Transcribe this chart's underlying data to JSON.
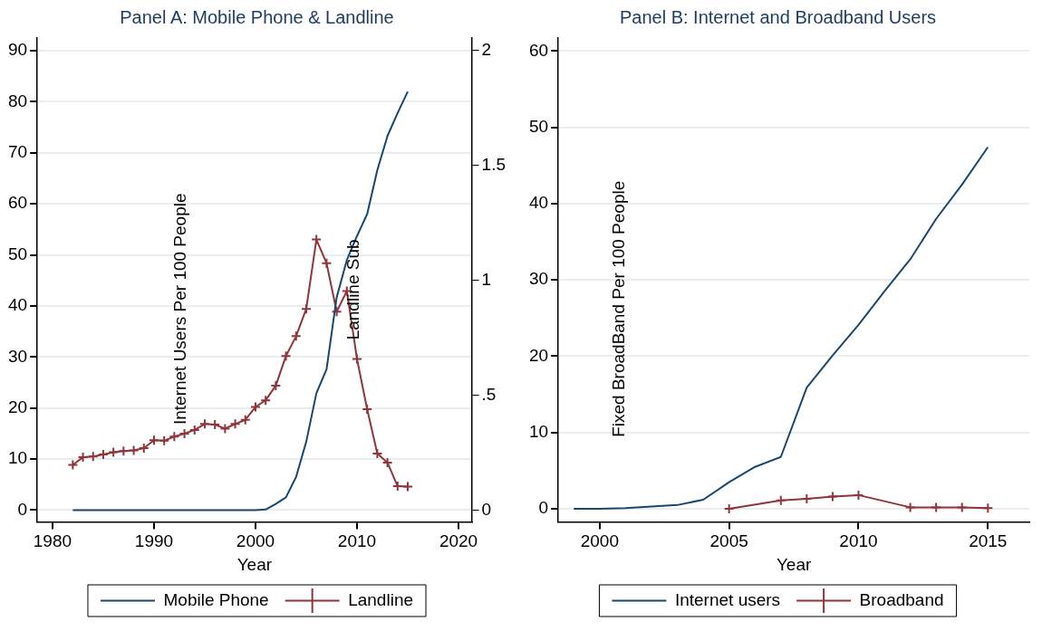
{
  "chart_data": [
    {
      "type": "line",
      "title": "Panel A: Mobile Phone & Landline",
      "xlabel": "Year",
      "ylabel": "Internet Users Per 100 People",
      "y2label": "Landline Sub",
      "xlim": [
        1978.5,
        2021.3
      ],
      "xticks": [
        1980,
        1990,
        2000,
        2010,
        2020
      ],
      "ylim": [
        -2.3,
        92.5
      ],
      "yticks": [
        0,
        10,
        20,
        30,
        40,
        50,
        60,
        70,
        80,
        90
      ],
      "y2lim": [
        -0.051,
        2.055
      ],
      "y2ticks": [
        0,
        {
          "value": 0.5,
          "label": ".5"
        },
        1,
        1.5,
        2
      ],
      "grid": "y",
      "legend": "bottom",
      "series": [
        {
          "name": "Mobile Phone",
          "color": "#1a476f",
          "marker": "none",
          "x": [
            1982,
            1983,
            1984,
            1985,
            1986,
            1987,
            1988,
            1989,
            1990,
            1991,
            1992,
            1993,
            1994,
            1995,
            1996,
            1997,
            1998,
            1999,
            2000,
            2001,
            2002,
            2003,
            2004,
            2005,
            2006,
            2007,
            2008,
            2009,
            2010,
            2011,
            2012,
            2013,
            2014,
            2015
          ],
          "values": [
            0,
            0,
            0,
            0,
            0,
            0,
            0,
            0,
            0,
            0,
            0,
            0,
            0,
            0,
            0,
            0,
            0,
            0,
            0,
            0.1,
            1.2,
            2.5,
            6.5,
            13.4,
            22.9,
            27.6,
            41.7,
            49,
            53.7,
            58,
            66.6,
            73.3,
            77.8,
            82
          ]
        },
        {
          "name": "Landline",
          "color": "#90353b",
          "marker": "cross",
          "axis": "y2",
          "x": [
            1982,
            1983,
            1984,
            1985,
            1986,
            1987,
            1988,
            1989,
            1990,
            1991,
            1992,
            1993,
            1994,
            1995,
            1996,
            1997,
            1998,
            1999,
            2000,
            2001,
            2002,
            2003,
            2004,
            2005,
            2006,
            2007,
            2008,
            2009,
            2010,
            2011,
            2012,
            2013,
            2014,
            2015
          ],
          "values": [
            0.197,
            0.23,
            0.233,
            0.242,
            0.252,
            0.257,
            0.26,
            0.27,
            0.304,
            0.302,
            0.32,
            0.333,
            0.349,
            0.375,
            0.372,
            0.355,
            0.375,
            0.393,
            0.449,
            0.478,
            0.542,
            0.671,
            0.757,
            0.876,
            1.178,
            1.075,
            0.864,
            0.954,
            0.658,
            0.439,
            0.246,
            0.207,
            0.104,
            0.102
          ]
        }
      ]
    },
    {
      "type": "line",
      "title": "Panel B: Internet and Broadband Users",
      "xlabel": "Year",
      "ylabel": "Fixed BroadBand Per 100 People",
      "xlim": [
        1998.4,
        2016.6
      ],
      "xticks": [
        2000,
        2005,
        2010,
        2015
      ],
      "ylim": [
        -1.7,
        61.7
      ],
      "yticks": [
        0,
        10,
        20,
        30,
        40,
        50,
        60
      ],
      "grid": "y",
      "legend": "bottom",
      "series": [
        {
          "name": "Internet users",
          "color": "#1a476f",
          "marker": "none",
          "x": [
            1999,
            2000,
            2001,
            2002,
            2003,
            2004,
            2005,
            2006,
            2007,
            2008,
            2009,
            2010,
            2011,
            2012,
            2013,
            2014,
            2015
          ],
          "values": [
            0,
            0,
            0.1,
            0.3,
            0.5,
            1.2,
            3.5,
            5.5,
            6.8,
            15.9,
            20.1,
            24.1,
            28.5,
            32.7,
            38,
            42.5,
            47.4
          ]
        },
        {
          "name": "Broadband",
          "color": "#90353b",
          "marker": "cross",
          "x": [
            2005,
            2007,
            2008,
            2009,
            2010,
            2012,
            2013,
            2014,
            2015
          ],
          "values": [
            0,
            1.1,
            1.3,
            1.6,
            1.8,
            0.2,
            0.2,
            0.2,
            0.1
          ]
        }
      ]
    }
  ]
}
